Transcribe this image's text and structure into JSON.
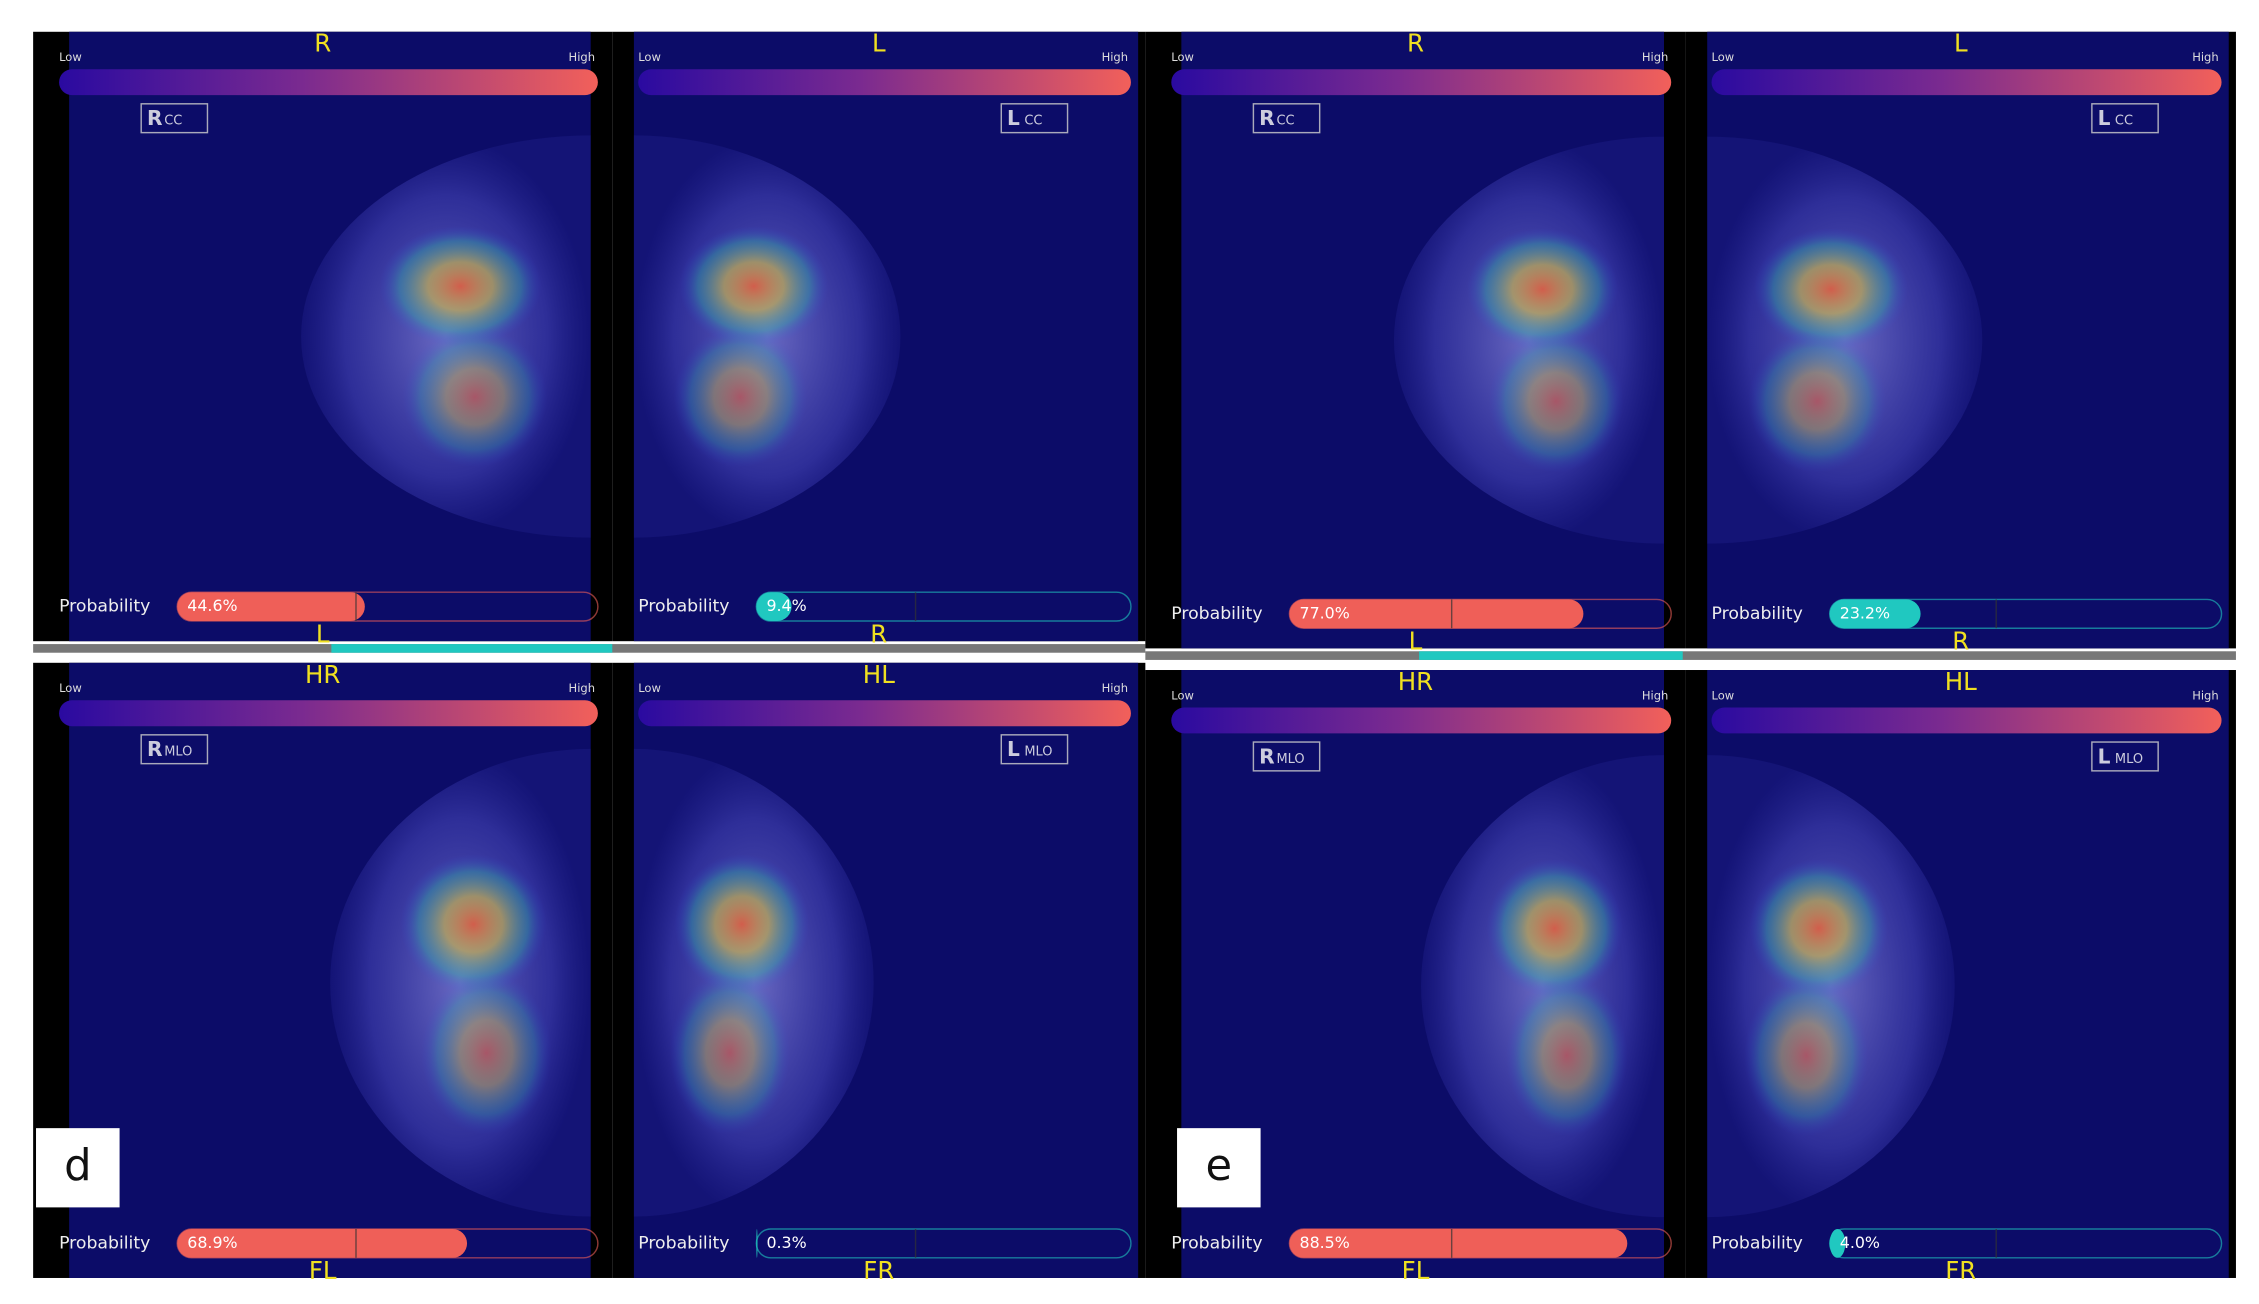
{
  "threshold": 42.5,
  "panels": [
    {
      "label": "d",
      "views": [
        {
          "top_label": "R",
          "bar_low": "Low",
          "bar_high": "High",
          "badge": {
            "side": "R",
            "view": "CC"
          },
          "probability_label": "Probability",
          "probability": {
            "value": 44.6,
            "label": "44.6%"
          },
          "color": "#ef5f58",
          "bottom_label": "L"
        },
        {
          "top_label": "L",
          "bar_low": "Low",
          "bar_high": "High",
          "badge": {
            "side": "L",
            "view": "CC"
          },
          "probability_label": "Probability",
          "probability": {
            "value": 9.4,
            "label": "9.4%"
          },
          "color": "#20c8c0",
          "bottom_label": "R"
        },
        {
          "top_label": "HR",
          "bar_low": "Low",
          "bar_high": "High",
          "badge": {
            "side": "R",
            "view": "MLO"
          },
          "probability_label": "Probability",
          "probability": {
            "value": 68.9,
            "label": "68.9%"
          },
          "color": "#ef5f58",
          "bottom_label": "FL"
        },
        {
          "top_label": "HL",
          "bar_low": "Low",
          "bar_high": "High",
          "badge": {
            "side": "L",
            "view": "MLO"
          },
          "probability_label": "Probability",
          "probability": {
            "value": 0.3,
            "label": "0.3%"
          },
          "color": "#20c8c0",
          "bottom_label": "FR"
        }
      ]
    },
    {
      "label": "e",
      "views": [
        {
          "top_label": "R",
          "bar_low": "Low",
          "bar_high": "High",
          "badge": {
            "side": "R",
            "view": "CC"
          },
          "probability_label": "Probability",
          "probability": {
            "value": 77.0,
            "label": "77.0%"
          },
          "color": "#ef5f58",
          "bottom_label": "L"
        },
        {
          "top_label": "L",
          "bar_low": "Low",
          "bar_high": "High",
          "badge": {
            "side": "L",
            "view": "CC"
          },
          "probability_label": "Probability",
          "probability": {
            "value": 23.2,
            "label": "23.2%"
          },
          "color": "#20c8c0",
          "bottom_label": "R"
        },
        {
          "top_label": "HR",
          "bar_low": "Low",
          "bar_high": "High",
          "badge": {
            "side": "R",
            "view": "MLO"
          },
          "probability_label": "Probability",
          "probability": {
            "value": 88.5,
            "label": "88.5%"
          },
          "color": "#ef5f58",
          "bottom_label": "FL"
        },
        {
          "top_label": "HL",
          "bar_low": "Low",
          "bar_high": "High",
          "badge": {
            "side": "L",
            "view": "MLO"
          },
          "probability_label": "Probability",
          "probability": {
            "value": 4.0,
            "label": "4.0%"
          },
          "color": "#20c8c0",
          "bottom_label": "FR"
        }
      ]
    }
  ]
}
